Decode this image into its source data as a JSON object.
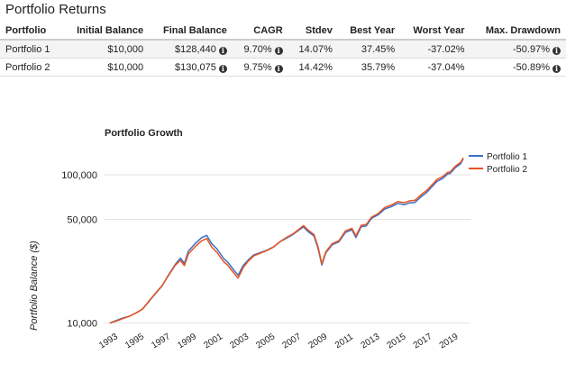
{
  "page": {
    "section_title": "Portfolio Returns"
  },
  "table": {
    "headers": [
      "Portfolio",
      "Initial Balance",
      "Final Balance",
      "CAGR",
      "Stdev",
      "Best Year",
      "Worst Year",
      "Max. Drawdown"
    ],
    "rows": [
      {
        "portfolio": "Portfolio 1",
        "initial_balance": "$10,000",
        "final_balance": "$128,440",
        "cagr": "9.70%",
        "stdev": "14.07%",
        "best_year": "37.45%",
        "worst_year": "-37.02%",
        "max_drawdown": "-50.97%"
      },
      {
        "portfolio": "Portfolio 2",
        "initial_balance": "$10,000",
        "final_balance": "$130,075",
        "cagr": "9.75%",
        "stdev": "14.42%",
        "best_year": "35.79%",
        "worst_year": "-37.04%",
        "max_drawdown": "-50.89%"
      }
    ],
    "info_icon": "info-circle-icon",
    "info_glyph": "i"
  },
  "chart_data": {
    "type": "line",
    "title": "Portfolio Growth",
    "ylabel": "Portfolio Balance ($)",
    "xlabel": "",
    "y_scale": "log",
    "ylim": [
      9000,
      140000
    ],
    "xlim": [
      1992.6,
      2020.0
    ],
    "y_ticks": [
      10000,
      50000,
      100000
    ],
    "y_tick_labels": [
      "10,000",
      "50,000",
      "100,000"
    ],
    "x_ticks": [
      1993,
      1995,
      1997,
      1999,
      2001,
      2003,
      2005,
      2007,
      2009,
      2011,
      2013,
      2015,
      2017,
      2019
    ],
    "x_tick_labels": [
      "1993",
      "1995",
      "1997",
      "1999",
      "2001",
      "2003",
      "2005",
      "2007",
      "2009",
      "2011",
      "2013",
      "2015",
      "2017",
      "2019"
    ],
    "grid": "horizontal",
    "legend_position": "top-right",
    "colors": [
      "#3b6fc4",
      "#e8531f"
    ],
    "x": [
      1993.0,
      1993.5,
      1994.0,
      1994.5,
      1995.0,
      1995.5,
      1996.0,
      1996.5,
      1997.0,
      1997.5,
      1998.0,
      1998.4,
      1998.7,
      1999.0,
      1999.5,
      2000.0,
      2000.4,
      2000.8,
      2001.2,
      2001.7,
      2002.0,
      2002.5,
      2002.8,
      2003.2,
      2003.6,
      2004.0,
      2004.5,
      2005.0,
      2005.5,
      2006.0,
      2006.5,
      2007.0,
      2007.5,
      2007.8,
      2008.2,
      2008.6,
      2008.9,
      2009.2,
      2009.5,
      2010.0,
      2010.5,
      2011.0,
      2011.5,
      2011.8,
      2012.2,
      2012.6,
      2013.0,
      2013.5,
      2014.0,
      2014.5,
      2015.0,
      2015.5,
      2015.9,
      2016.3,
      2016.8,
      2017.2,
      2017.7,
      2018.0,
      2018.4,
      2018.8,
      2019.0,
      2019.4,
      2019.8,
      2020.0
    ],
    "series": [
      {
        "name": "Portfolio 1",
        "values": [
          10000,
          10400,
          10800,
          11100,
          11700,
          12400,
          14000,
          15800,
          17800,
          21200,
          24800,
          27400,
          25200,
          30500,
          34200,
          37600,
          39000,
          34200,
          31500,
          27200,
          25800,
          22600,
          21000,
          24500,
          26800,
          28800,
          29900,
          31000,
          32600,
          35300,
          37400,
          39600,
          42700,
          44500,
          41000,
          38600,
          32000,
          24600,
          29700,
          33800,
          35300,
          40900,
          42600,
          37700,
          44600,
          45300,
          50900,
          53700,
          58700,
          60900,
          64200,
          62800,
          64600,
          65100,
          71400,
          75900,
          84700,
          90500,
          94200,
          101100,
          102100,
          111900,
          118700,
          128440
        ]
      },
      {
        "name": "Portfolio 2",
        "values": [
          10000,
          10300,
          10700,
          11100,
          11700,
          12400,
          14100,
          15900,
          17900,
          21000,
          24500,
          26500,
          24400,
          29200,
          32600,
          35800,
          37100,
          32400,
          29900,
          25900,
          24600,
          21600,
          20100,
          23700,
          26300,
          28400,
          29600,
          30800,
          32500,
          35400,
          37800,
          40000,
          43300,
          45400,
          42000,
          39500,
          32800,
          25100,
          30200,
          34300,
          35900,
          41800,
          43500,
          38700,
          45600,
          46300,
          51900,
          54800,
          60200,
          62500,
          66100,
          64700,
          66700,
          67200,
          73600,
          78300,
          87200,
          93100,
          96900,
          103800,
          104500,
          114500,
          121300,
          130075
        ]
      }
    ]
  }
}
